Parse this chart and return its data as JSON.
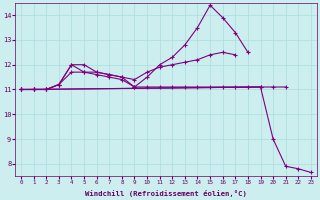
{
  "x": [
    0,
    1,
    2,
    3,
    4,
    5,
    6,
    7,
    8,
    9,
    10,
    11,
    12,
    13,
    14,
    15,
    16,
    17,
    18,
    19,
    20,
    21,
    22,
    23
  ],
  "line1_y": [
    11.0,
    11.0,
    11.0,
    11.2,
    12.0,
    11.7,
    11.6,
    11.5,
    11.4,
    11.1,
    11.1,
    11.1,
    11.1,
    11.1,
    11.1,
    11.1,
    11.1,
    11.1,
    11.1,
    11.1,
    11.1,
    11.1,
    null,
    null
  ],
  "line2_y": [
    11.0,
    11.0,
    11.0,
    11.2,
    12.0,
    12.0,
    11.7,
    11.6,
    11.5,
    11.4,
    11.7,
    11.9,
    12.0,
    12.1,
    12.2,
    12.4,
    12.5,
    12.4,
    null,
    null,
    null,
    null,
    null,
    null
  ],
  "line3_y": [
    11.0,
    11.0,
    11.0,
    11.2,
    11.7,
    11.7,
    11.7,
    11.6,
    11.5,
    11.1,
    11.5,
    12.0,
    12.3,
    12.8,
    13.5,
    14.4,
    13.9,
    13.3,
    12.5,
    null,
    null,
    null,
    null,
    null
  ],
  "line4_y": [
    11.0,
    11.0,
    null,
    null,
    null,
    null,
    null,
    null,
    null,
    null,
    null,
    null,
    null,
    null,
    null,
    null,
    null,
    null,
    null,
    11.1,
    9.0,
    7.9,
    7.8,
    7.65
  ],
  "line_color": "#800080",
  "bg_color": "#cceeee",
  "grid_color": "#aadddd",
  "axis_color": "#660066",
  "xlabel": "Windchill (Refroidissement éolien,°C)",
  "yticks": [
    8,
    9,
    10,
    11,
    12,
    13,
    14
  ],
  "xlim": [
    -0.5,
    23.5
  ],
  "ylim": [
    7.5,
    14.5
  ],
  "xticks": [
    0,
    1,
    2,
    3,
    4,
    5,
    6,
    7,
    8,
    9,
    10,
    11,
    12,
    13,
    14,
    15,
    16,
    17,
    18,
    19,
    20,
    21,
    22,
    23
  ]
}
